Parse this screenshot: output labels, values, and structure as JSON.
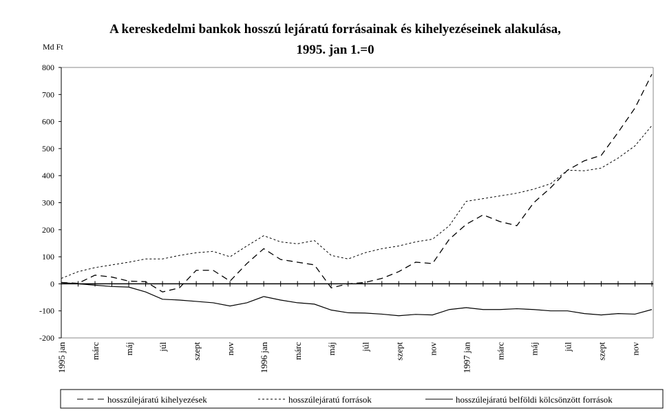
{
  "chart_data": {
    "type": "line",
    "title": "A kereskedelmi bankok hosszú lejáratú forrásainak  és kihelyezéseinek alakulása,",
    "subtitle": "1995. jan 1.=0",
    "ylabel": "Md Ft",
    "xlabel": "",
    "ylim": [
      -200,
      800
    ],
    "yticks": [
      800,
      700,
      600,
      500,
      400,
      300,
      200,
      100,
      0,
      -100,
      -200
    ],
    "xtick_labels": [
      "1995 jan",
      "márc",
      "máj",
      "júl",
      "szept",
      "nov",
      "1996 jan",
      "márc",
      "máj",
      "júl",
      "szept",
      "nov",
      "1997 jan",
      "márc",
      "máj",
      "júl",
      "szept",
      "nov"
    ],
    "legend_position": "bottom",
    "series": [
      {
        "name": "hosszúlejáratú kihelyezések",
        "style": "dashed",
        "values": [
          5,
          2,
          32,
          25,
          10,
          8,
          -30,
          -15,
          50,
          50,
          10,
          75,
          130,
          90,
          80,
          70,
          -15,
          0,
          5,
          20,
          45,
          80,
          75,
          165,
          220,
          255,
          230,
          215,
          300,
          355,
          420,
          455,
          475,
          560,
          650,
          775
        ]
      },
      {
        "name": "hosszúlejáratú források",
        "style": "dotted",
        "values": [
          20,
          45,
          60,
          70,
          80,
          92,
          92,
          105,
          115,
          120,
          100,
          140,
          178,
          155,
          148,
          160,
          105,
          92,
          115,
          130,
          140,
          155,
          165,
          215,
          305,
          315,
          325,
          335,
          350,
          370,
          420,
          418,
          428,
          465,
          510,
          585
        ]
      },
      {
        "name": "hosszúlejáratú belföldi kölcsönzött források",
        "style": "solid",
        "values": [
          5,
          0,
          -5,
          -10,
          -12,
          -30,
          -57,
          -60,
          -65,
          -70,
          -82,
          -70,
          -47,
          -60,
          -70,
          -75,
          -97,
          -107,
          -108,
          -112,
          -118,
          -113,
          -115,
          -95,
          -88,
          -95,
          -95,
          -92,
          -95,
          -100,
          -100,
          -110,
          -115,
          -110,
          -112,
          -95
        ]
      }
    ]
  }
}
